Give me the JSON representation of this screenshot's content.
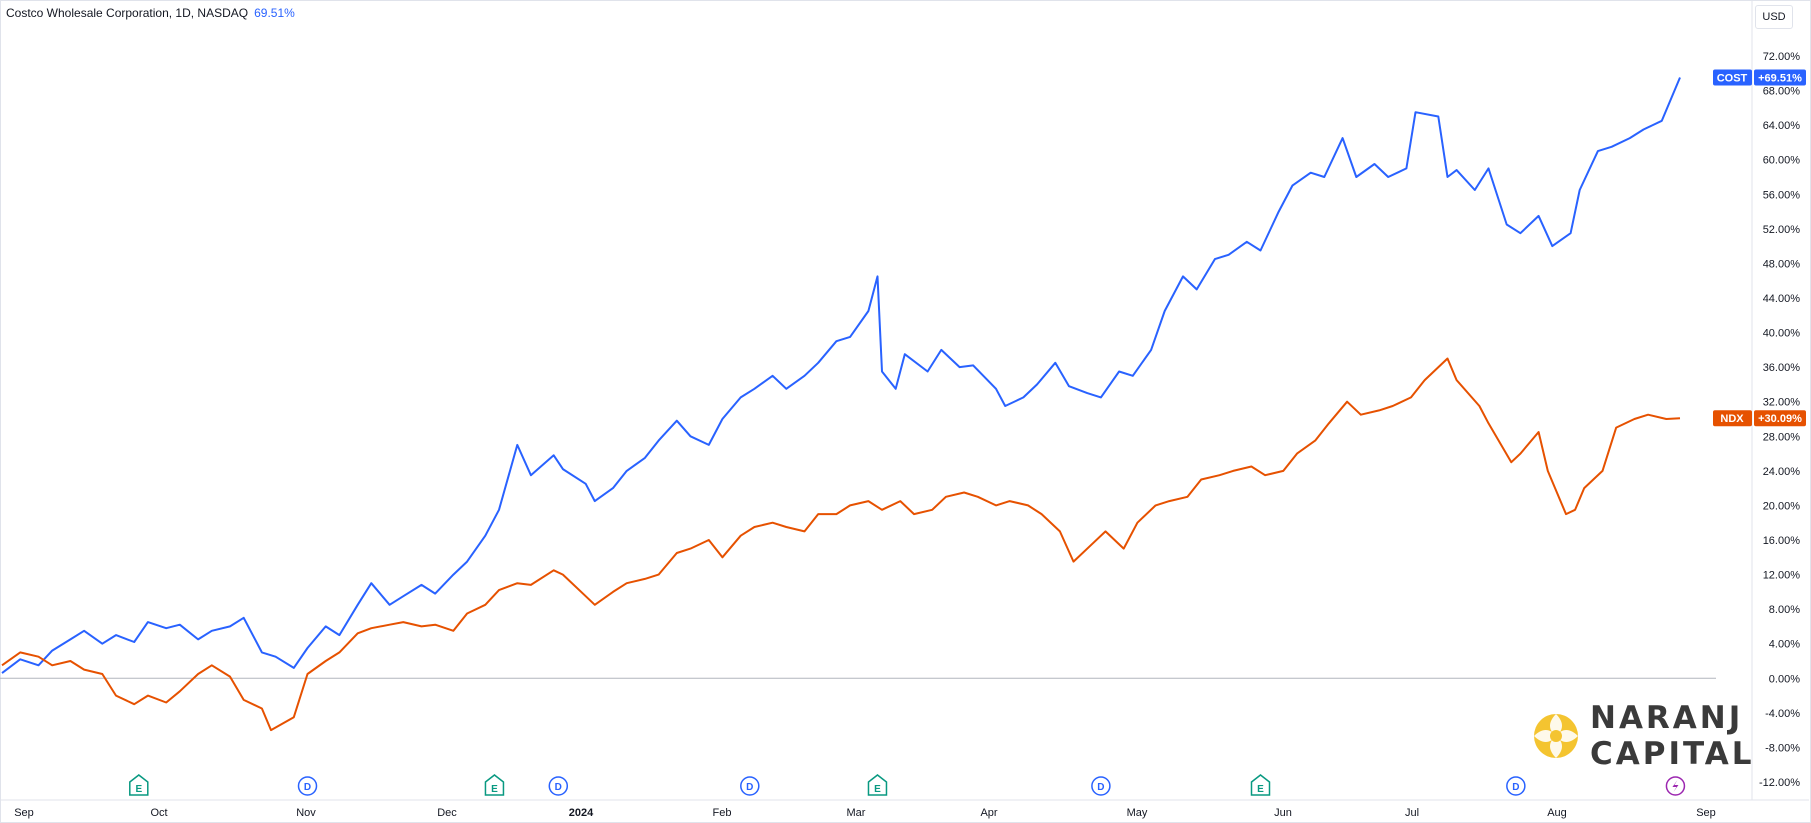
{
  "header": {
    "symbol_title": "Costco Wholesale Corporation, 1D, NASDAQ",
    "change_value": "69.51%"
  },
  "currency_button": "USD",
  "brand": {
    "line1": "NARANJ",
    "line2": "CAPITAL"
  },
  "colors": {
    "cost": "#2962ff",
    "ndx": "#e65100",
    "zero_line": "#b2b5be",
    "earnings": "#089981",
    "dividend": "#2962ff",
    "split": "#9c27b0"
  },
  "chart_data": {
    "type": "line",
    "x_axis_labels": [
      "Sep",
      "Oct",
      "Nov",
      "Dec",
      "2024",
      "Feb",
      "Mar",
      "Apr",
      "May",
      "Jun",
      "Jul",
      "Aug",
      "Sep"
    ],
    "y_axis_ticks": [
      "72.00%",
      "68.00%",
      "64.00%",
      "60.00%",
      "56.00%",
      "52.00%",
      "48.00%",
      "44.00%",
      "40.00%",
      "36.00%",
      "32.00%",
      "28.00%",
      "24.00%",
      "20.00%",
      "16.00%",
      "12.00%",
      "8.00%",
      "4.00%",
      "0.00%",
      "-4.00%",
      "-8.00%",
      "-12.00%"
    ],
    "ylim": [
      -12,
      72
    ],
    "series": [
      {
        "name": "COST",
        "last_label": "+69.51%",
        "points": [
          [
            "2023-08-28",
            0.6
          ],
          [
            "2023-09-01",
            2.2
          ],
          [
            "2023-09-05",
            1.5
          ],
          [
            "2023-09-08",
            3.2
          ],
          [
            "2023-09-12",
            4.5
          ],
          [
            "2023-09-15",
            5.5
          ],
          [
            "2023-09-19",
            4.0
          ],
          [
            "2023-09-22",
            5.0
          ],
          [
            "2023-09-26",
            4.2
          ],
          [
            "2023-09-29",
            6.5
          ],
          [
            "2023-10-03",
            5.8
          ],
          [
            "2023-10-06",
            6.2
          ],
          [
            "2023-10-10",
            4.5
          ],
          [
            "2023-10-13",
            5.5
          ],
          [
            "2023-10-17",
            6.0
          ],
          [
            "2023-10-20",
            7.0
          ],
          [
            "2023-10-24",
            3.0
          ],
          [
            "2023-10-27",
            2.5
          ],
          [
            "2023-10-31",
            1.2
          ],
          [
            "2023-11-03",
            3.5
          ],
          [
            "2023-11-07",
            6.0
          ],
          [
            "2023-11-10",
            5.0
          ],
          [
            "2023-11-14",
            8.5
          ],
          [
            "2023-11-17",
            11.0
          ],
          [
            "2023-11-21",
            8.5
          ],
          [
            "2023-11-24",
            9.5
          ],
          [
            "2023-11-28",
            10.8
          ],
          [
            "2023-12-01",
            9.8
          ],
          [
            "2023-12-05",
            12.0
          ],
          [
            "2023-12-08",
            13.5
          ],
          [
            "2023-12-12",
            16.5
          ],
          [
            "2023-12-15",
            19.5
          ],
          [
            "2023-12-19",
            27.0
          ],
          [
            "2023-12-22",
            23.5
          ],
          [
            "2023-12-27",
            25.8
          ],
          [
            "2023-12-29",
            24.2
          ],
          [
            "2024-01-03",
            22.5
          ],
          [
            "2024-01-05",
            20.5
          ],
          [
            "2024-01-09",
            22.0
          ],
          [
            "2024-01-12",
            24.0
          ],
          [
            "2024-01-16",
            25.5
          ],
          [
            "2024-01-19",
            27.5
          ],
          [
            "2024-01-23",
            29.8
          ],
          [
            "2024-01-26",
            28.0
          ],
          [
            "2024-01-30",
            27.0
          ],
          [
            "2024-02-02",
            30.0
          ],
          [
            "2024-02-06",
            32.5
          ],
          [
            "2024-02-09",
            33.5
          ],
          [
            "2024-02-13",
            35.0
          ],
          [
            "2024-02-16",
            33.5
          ],
          [
            "2024-02-20",
            35.0
          ],
          [
            "2024-02-23",
            36.5
          ],
          [
            "2024-02-27",
            39.0
          ],
          [
            "2024-03-01",
            39.5
          ],
          [
            "2024-03-05",
            42.5
          ],
          [
            "2024-03-07",
            46.5
          ],
          [
            "2024-03-08",
            35.5
          ],
          [
            "2024-03-11",
            33.5
          ],
          [
            "2024-03-13",
            37.5
          ],
          [
            "2024-03-18",
            35.5
          ],
          [
            "2024-03-21",
            38.0
          ],
          [
            "2024-03-25",
            36.0
          ],
          [
            "2024-03-28",
            36.2
          ],
          [
            "2024-04-02",
            33.5
          ],
          [
            "2024-04-04",
            31.5
          ],
          [
            "2024-04-08",
            32.5
          ],
          [
            "2024-04-11",
            34.0
          ],
          [
            "2024-04-15",
            36.5
          ],
          [
            "2024-04-18",
            33.8
          ],
          [
            "2024-04-22",
            33.0
          ],
          [
            "2024-04-25",
            32.5
          ],
          [
            "2024-04-29",
            35.5
          ],
          [
            "2024-05-02",
            35.0
          ],
          [
            "2024-05-06",
            38.0
          ],
          [
            "2024-05-09",
            42.5
          ],
          [
            "2024-05-13",
            46.5
          ],
          [
            "2024-05-16",
            45.0
          ],
          [
            "2024-05-20",
            48.5
          ],
          [
            "2024-05-23",
            49.0
          ],
          [
            "2024-05-27",
            50.5
          ],
          [
            "2024-05-30",
            49.5
          ],
          [
            "2024-06-03",
            54.0
          ],
          [
            "2024-06-06",
            57.0
          ],
          [
            "2024-06-10",
            58.5
          ],
          [
            "2024-06-13",
            58.0
          ],
          [
            "2024-06-17",
            62.5
          ],
          [
            "2024-06-20",
            58.0
          ],
          [
            "2024-06-24",
            59.5
          ],
          [
            "2024-06-27",
            58.0
          ],
          [
            "2024-07-01",
            59.0
          ],
          [
            "2024-07-03",
            65.5
          ],
          [
            "2024-07-08",
            65.0
          ],
          [
            "2024-07-10",
            58.0
          ],
          [
            "2024-07-12",
            58.8
          ],
          [
            "2024-07-16",
            56.5
          ],
          [
            "2024-07-19",
            59.0
          ],
          [
            "2024-07-23",
            52.5
          ],
          [
            "2024-07-26",
            51.5
          ],
          [
            "2024-07-30",
            53.5
          ],
          [
            "2024-08-02",
            50.0
          ],
          [
            "2024-08-06",
            51.5
          ],
          [
            "2024-08-08",
            56.5
          ],
          [
            "2024-08-12",
            61.0
          ],
          [
            "2024-08-15",
            61.5
          ],
          [
            "2024-08-19",
            62.5
          ],
          [
            "2024-08-22",
            63.5
          ],
          [
            "2024-08-26",
            64.5
          ],
          [
            "2024-08-30",
            69.51
          ]
        ]
      },
      {
        "name": "NDX",
        "last_label": "+30.09%",
        "points": [
          [
            "2023-08-28",
            1.5
          ],
          [
            "2023-09-01",
            3.0
          ],
          [
            "2023-09-05",
            2.5
          ],
          [
            "2023-09-08",
            1.5
          ],
          [
            "2023-09-12",
            2.0
          ],
          [
            "2023-09-15",
            1.0
          ],
          [
            "2023-09-19",
            0.5
          ],
          [
            "2023-09-22",
            -2.0
          ],
          [
            "2023-09-26",
            -3.0
          ],
          [
            "2023-09-29",
            -2.0
          ],
          [
            "2023-10-03",
            -2.8
          ],
          [
            "2023-10-06",
            -1.5
          ],
          [
            "2023-10-10",
            0.5
          ],
          [
            "2023-10-13",
            1.5
          ],
          [
            "2023-10-17",
            0.2
          ],
          [
            "2023-10-20",
            -2.5
          ],
          [
            "2023-10-24",
            -3.5
          ],
          [
            "2023-10-26",
            -6.0
          ],
          [
            "2023-10-31",
            -4.5
          ],
          [
            "2023-11-03",
            0.5
          ],
          [
            "2023-11-07",
            2.0
          ],
          [
            "2023-11-10",
            3.0
          ],
          [
            "2023-11-14",
            5.2
          ],
          [
            "2023-11-17",
            5.8
          ],
          [
            "2023-11-21",
            6.2
          ],
          [
            "2023-11-24",
            6.5
          ],
          [
            "2023-11-28",
            6.0
          ],
          [
            "2023-12-01",
            6.2
          ],
          [
            "2023-12-05",
            5.5
          ],
          [
            "2023-12-08",
            7.5
          ],
          [
            "2023-12-12",
            8.5
          ],
          [
            "2023-12-15",
            10.2
          ],
          [
            "2023-12-19",
            11.0
          ],
          [
            "2023-12-22",
            10.8
          ],
          [
            "2023-12-27",
            12.5
          ],
          [
            "2023-12-29",
            12.0
          ],
          [
            "2024-01-03",
            9.5
          ],
          [
            "2024-01-05",
            8.5
          ],
          [
            "2024-01-09",
            10.0
          ],
          [
            "2024-01-12",
            11.0
          ],
          [
            "2024-01-16",
            11.5
          ],
          [
            "2024-01-19",
            12.0
          ],
          [
            "2024-01-23",
            14.5
          ],
          [
            "2024-01-26",
            15.0
          ],
          [
            "2024-01-30",
            16.0
          ],
          [
            "2024-02-02",
            14.0
          ],
          [
            "2024-02-06",
            16.5
          ],
          [
            "2024-02-09",
            17.5
          ],
          [
            "2024-02-13",
            18.0
          ],
          [
            "2024-02-16",
            17.5
          ],
          [
            "2024-02-20",
            17.0
          ],
          [
            "2024-02-23",
            19.0
          ],
          [
            "2024-02-27",
            19.0
          ],
          [
            "2024-03-01",
            20.0
          ],
          [
            "2024-03-05",
            20.5
          ],
          [
            "2024-03-08",
            19.5
          ],
          [
            "2024-03-12",
            20.5
          ],
          [
            "2024-03-15",
            19.0
          ],
          [
            "2024-03-19",
            19.5
          ],
          [
            "2024-03-22",
            21.0
          ],
          [
            "2024-03-26",
            21.5
          ],
          [
            "2024-03-29",
            21.0
          ],
          [
            "2024-04-02",
            20.0
          ],
          [
            "2024-04-05",
            20.5
          ],
          [
            "2024-04-09",
            20.0
          ],
          [
            "2024-04-12",
            19.0
          ],
          [
            "2024-04-16",
            17.0
          ],
          [
            "2024-04-19",
            13.5
          ],
          [
            "2024-04-23",
            15.5
          ],
          [
            "2024-04-26",
            17.0
          ],
          [
            "2024-04-30",
            15.0
          ],
          [
            "2024-05-03",
            18.0
          ],
          [
            "2024-05-07",
            20.0
          ],
          [
            "2024-05-10",
            20.5
          ],
          [
            "2024-05-14",
            21.0
          ],
          [
            "2024-05-17",
            23.0
          ],
          [
            "2024-05-21",
            23.5
          ],
          [
            "2024-05-24",
            24.0
          ],
          [
            "2024-05-28",
            24.5
          ],
          [
            "2024-05-31",
            23.5
          ],
          [
            "2024-06-04",
            24.0
          ],
          [
            "2024-06-07",
            26.0
          ],
          [
            "2024-06-11",
            27.5
          ],
          [
            "2024-06-14",
            29.5
          ],
          [
            "2024-06-18",
            32.0
          ],
          [
            "2024-06-21",
            30.5
          ],
          [
            "2024-06-25",
            31.0
          ],
          [
            "2024-06-28",
            31.5
          ],
          [
            "2024-07-02",
            32.5
          ],
          [
            "2024-07-05",
            34.5
          ],
          [
            "2024-07-10",
            37.0
          ],
          [
            "2024-07-12",
            34.5
          ],
          [
            "2024-07-17",
            31.5
          ],
          [
            "2024-07-19",
            29.5
          ],
          [
            "2024-07-24",
            25.0
          ],
          [
            "2024-07-26",
            26.0
          ],
          [
            "2024-07-30",
            28.5
          ],
          [
            "2024-08-01",
            24.0
          ],
          [
            "2024-08-05",
            19.0
          ],
          [
            "2024-08-07",
            19.5
          ],
          [
            "2024-08-09",
            22.0
          ],
          [
            "2024-08-13",
            24.0
          ],
          [
            "2024-08-16",
            29.0
          ],
          [
            "2024-08-20",
            30.0
          ],
          [
            "2024-08-23",
            30.5
          ],
          [
            "2024-08-27",
            30.0
          ],
          [
            "2024-08-30",
            30.09
          ]
        ]
      }
    ],
    "event_markers": [
      {
        "type": "E",
        "date": "2023-09-27"
      },
      {
        "type": "D",
        "date": "2023-11-03"
      },
      {
        "type": "E",
        "date": "2023-12-14"
      },
      {
        "type": "D",
        "date": "2023-12-28"
      },
      {
        "type": "D",
        "date": "2024-02-08"
      },
      {
        "type": "E",
        "date": "2024-03-07"
      },
      {
        "type": "D",
        "date": "2024-04-25"
      },
      {
        "type": "E",
        "date": "2024-05-30"
      },
      {
        "type": "D",
        "date": "2024-07-25"
      },
      {
        "type": "split",
        "date": "2024-08-29"
      }
    ]
  }
}
